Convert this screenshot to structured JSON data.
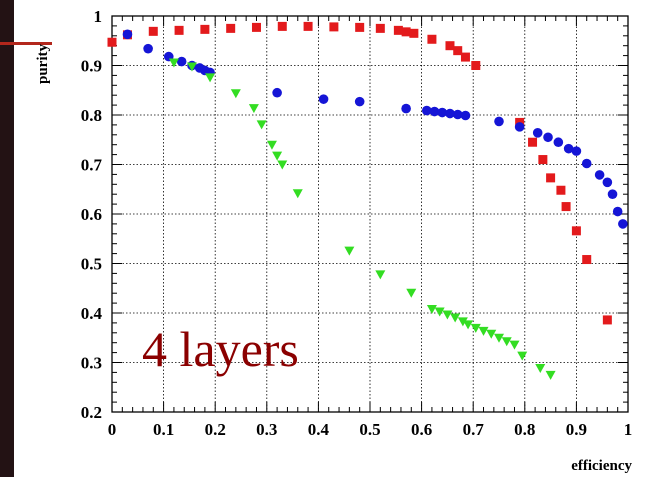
{
  "slide": {
    "edge_color": "#231214",
    "accent_color": "#b3271c"
  },
  "chart_data": {
    "type": "scatter",
    "xlabel": "efficiency",
    "ylabel": "purity",
    "xlim": [
      0,
      1
    ],
    "ylim": [
      0.2,
      1
    ],
    "x_ticks": [
      0,
      0.1,
      0.2,
      0.3,
      0.4,
      0.5,
      0.6,
      0.7,
      0.8,
      0.9,
      1
    ],
    "x_tick_labels": [
      "0",
      "0.1",
      "0.2",
      "0.3",
      "0.4",
      "0.5",
      "0.6",
      "0.7",
      "0.8",
      "0.9",
      "1"
    ],
    "y_ticks": [
      0.2,
      0.3,
      0.4,
      0.5,
      0.6,
      0.7,
      0.8,
      0.9,
      1
    ],
    "y_tick_labels": [
      "0.2",
      "0.3",
      "0.4",
      "0.5",
      "0.6",
      "0.7",
      "0.8",
      "0.9",
      "1"
    ],
    "grid": true,
    "annotation": {
      "text": "4 layers",
      "color": "#8b0000"
    },
    "series": [
      {
        "marker": "square",
        "color": "#e31a1c",
        "points": [
          [
            0.0,
            0.947
          ],
          [
            0.03,
            0.962
          ],
          [
            0.08,
            0.969
          ],
          [
            0.13,
            0.971
          ],
          [
            0.18,
            0.973
          ],
          [
            0.23,
            0.975
          ],
          [
            0.28,
            0.977
          ],
          [
            0.33,
            0.979
          ],
          [
            0.38,
            0.979
          ],
          [
            0.43,
            0.978
          ],
          [
            0.48,
            0.977
          ],
          [
            0.52,
            0.975
          ],
          [
            0.555,
            0.971
          ],
          [
            0.57,
            0.968
          ],
          [
            0.585,
            0.965
          ],
          [
            0.62,
            0.953
          ],
          [
            0.655,
            0.94
          ],
          [
            0.67,
            0.93
          ],
          [
            0.685,
            0.917
          ],
          [
            0.705,
            0.9
          ],
          [
            0.79,
            0.785
          ],
          [
            0.815,
            0.745
          ],
          [
            0.835,
            0.71
          ],
          [
            0.85,
            0.673
          ],
          [
            0.87,
            0.648
          ],
          [
            0.88,
            0.615
          ],
          [
            0.9,
            0.566
          ],
          [
            0.92,
            0.508
          ],
          [
            0.96,
            0.386
          ]
        ]
      },
      {
        "marker": "circle",
        "color": "#1515d6",
        "points": [
          [
            0.03,
            0.963
          ],
          [
            0.07,
            0.934
          ],
          [
            0.11,
            0.918
          ],
          [
            0.135,
            0.908
          ],
          [
            0.155,
            0.9
          ],
          [
            0.17,
            0.895
          ],
          [
            0.18,
            0.89
          ],
          [
            0.19,
            0.886
          ],
          [
            0.32,
            0.845
          ],
          [
            0.41,
            0.832
          ],
          [
            0.48,
            0.827
          ],
          [
            0.57,
            0.813
          ],
          [
            0.61,
            0.809
          ],
          [
            0.625,
            0.807
          ],
          [
            0.64,
            0.805
          ],
          [
            0.655,
            0.803
          ],
          [
            0.67,
            0.801
          ],
          [
            0.685,
            0.799
          ],
          [
            0.75,
            0.787
          ],
          [
            0.79,
            0.776
          ],
          [
            0.825,
            0.764
          ],
          [
            0.845,
            0.755
          ],
          [
            0.865,
            0.745
          ],
          [
            0.885,
            0.732
          ],
          [
            0.9,
            0.727
          ],
          [
            0.92,
            0.702
          ],
          [
            0.945,
            0.679
          ],
          [
            0.96,
            0.664
          ],
          [
            0.97,
            0.64
          ],
          [
            0.98,
            0.605
          ],
          [
            0.99,
            0.58
          ]
        ]
      },
      {
        "marker": "triangle-down",
        "color": "#33dd22",
        "points": [
          [
            0.12,
            0.906
          ],
          [
            0.155,
            0.898
          ],
          [
            0.19,
            0.876
          ],
          [
            0.24,
            0.844
          ],
          [
            0.275,
            0.814
          ],
          [
            0.29,
            0.781
          ],
          [
            0.31,
            0.74
          ],
          [
            0.32,
            0.718
          ],
          [
            0.33,
            0.7
          ],
          [
            0.36,
            0.642
          ],
          [
            0.46,
            0.526
          ],
          [
            0.52,
            0.478
          ],
          [
            0.58,
            0.441
          ],
          [
            0.62,
            0.408
          ],
          [
            0.635,
            0.403
          ],
          [
            0.65,
            0.397
          ],
          [
            0.665,
            0.391
          ],
          [
            0.68,
            0.383
          ],
          [
            0.69,
            0.377
          ],
          [
            0.705,
            0.37
          ],
          [
            0.72,
            0.364
          ],
          [
            0.735,
            0.358
          ],
          [
            0.75,
            0.35
          ],
          [
            0.765,
            0.343
          ],
          [
            0.78,
            0.336
          ],
          [
            0.795,
            0.314
          ],
          [
            0.83,
            0.289
          ],
          [
            0.85,
            0.275
          ]
        ]
      }
    ]
  }
}
